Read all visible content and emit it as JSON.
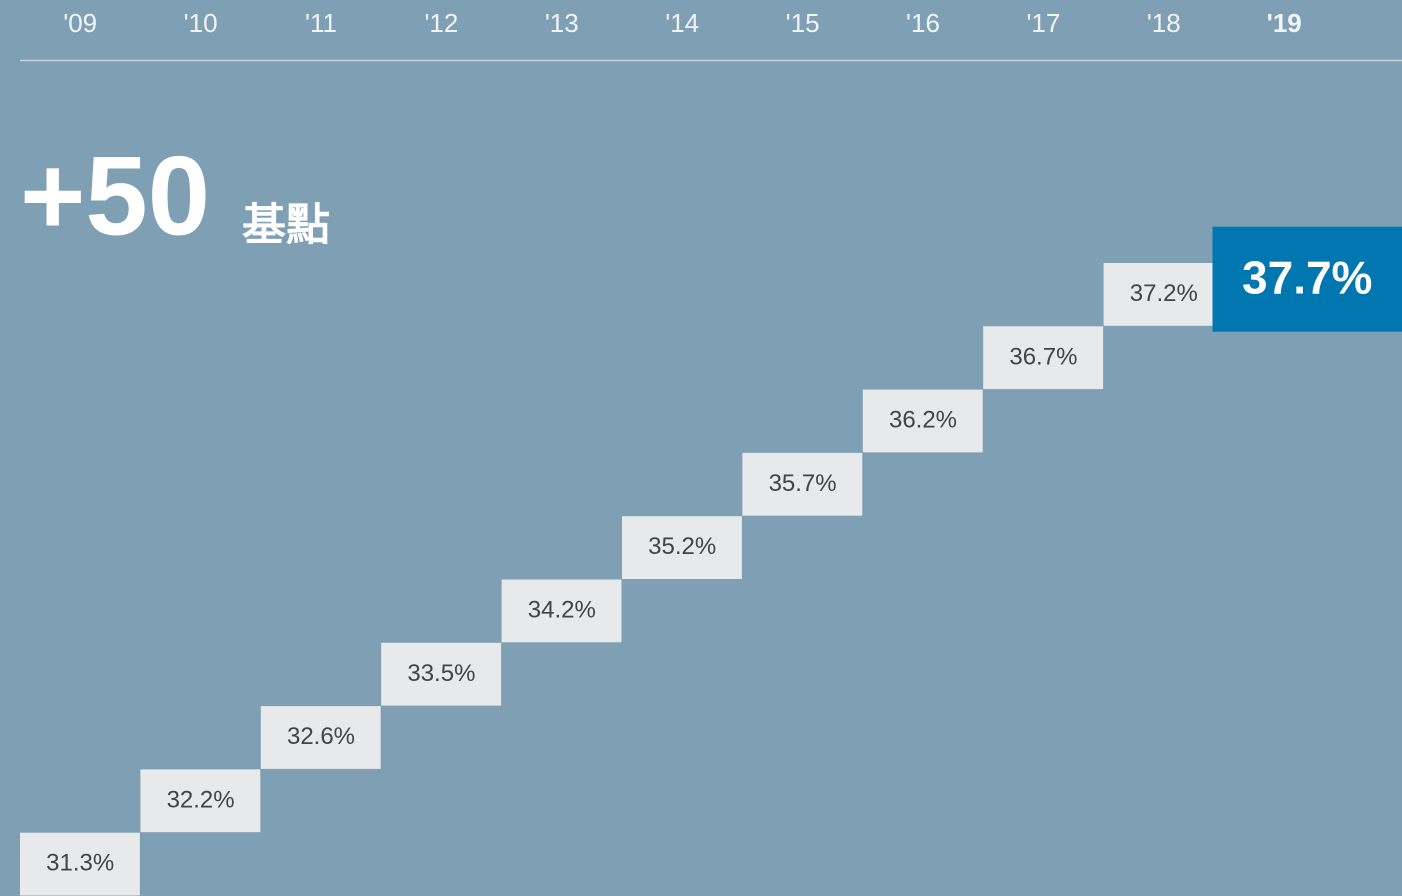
{
  "chart_data": {
    "type": "staircase",
    "annotation": "+50",
    "annotation_unit": "基點",
    "categories": [
      "'09",
      "'10",
      "'11",
      "'12",
      "'13",
      "'14",
      "'15",
      "'16",
      "'17",
      "'18",
      "'19"
    ],
    "values": [
      31.3,
      32.2,
      32.6,
      33.5,
      34.2,
      35.2,
      35.7,
      36.2,
      36.7,
      37.2,
      37.7
    ],
    "value_labels": [
      "31.3%",
      "32.2%",
      "32.6%",
      "33.5%",
      "34.2%",
      "35.2%",
      "35.7%",
      "36.2%",
      "36.7%",
      "37.2%",
      "37.7%"
    ],
    "color": "#e8e9eb",
    "highlight_color": "#0077b0"
  }
}
